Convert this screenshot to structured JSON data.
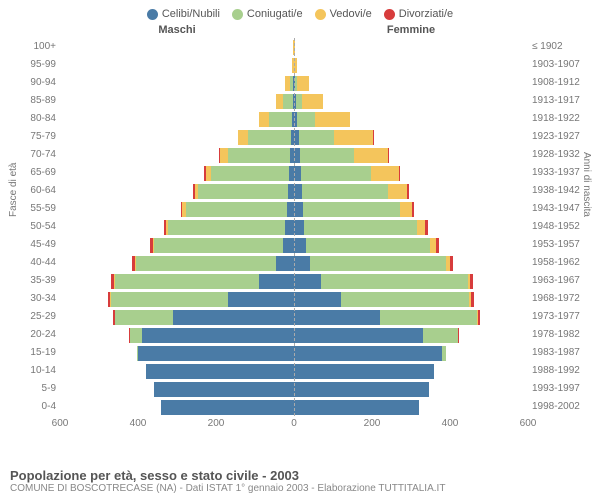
{
  "legend": [
    {
      "label": "Celibi/Nubili",
      "color": "#4a7ba6"
    },
    {
      "label": "Coniugati/e",
      "color": "#a8cf8e"
    },
    {
      "label": "Vedovi/e",
      "color": "#f4c55c"
    },
    {
      "label": "Divorziati/e",
      "color": "#d73c3c"
    }
  ],
  "header_male": "Maschi",
  "header_female": "Femmine",
  "axis_left_label": "Fasce di età",
  "axis_right_label": "Anni di nascita",
  "title": "Popolazione per età, sesso e stato civile - 2003",
  "subtitle": "COMUNE DI BOSCOTRECASE (NA) - Dati ISTAT 1° gennaio 2003 - Elaborazione TUTTITALIA.IT",
  "x_domain": 600,
  "x_ticks": [
    600,
    400,
    200,
    0,
    200,
    400,
    600
  ],
  "colors": {
    "single": "#4a7ba6",
    "married": "#a8cf8e",
    "widowed": "#f4c55c",
    "divorced": "#d73c3c",
    "grid": "#eeeeee",
    "centerline": "#aaaaaa",
    "text": "#777777",
    "bg": "#ffffff"
  },
  "rows": [
    {
      "age": "100+",
      "birth": "≤ 1902",
      "m": {
        "s": 0,
        "c": 0,
        "w": 2,
        "d": 0
      },
      "f": {
        "s": 0,
        "c": 0,
        "w": 3,
        "d": 0
      }
    },
    {
      "age": "95-99",
      "birth": "1903-1907",
      "m": {
        "s": 0,
        "c": 0,
        "w": 4,
        "d": 0
      },
      "f": {
        "s": 0,
        "c": 0,
        "w": 8,
        "d": 0
      }
    },
    {
      "age": "90-94",
      "birth": "1908-1912",
      "m": {
        "s": 2,
        "c": 8,
        "w": 12,
        "d": 0
      },
      "f": {
        "s": 3,
        "c": 5,
        "w": 30,
        "d": 0
      }
    },
    {
      "age": "85-89",
      "birth": "1913-1917",
      "m": {
        "s": 3,
        "c": 25,
        "w": 18,
        "d": 0
      },
      "f": {
        "s": 5,
        "c": 15,
        "w": 55,
        "d": 0
      }
    },
    {
      "age": "80-84",
      "birth": "1918-1922",
      "m": {
        "s": 5,
        "c": 60,
        "w": 25,
        "d": 0
      },
      "f": {
        "s": 8,
        "c": 45,
        "w": 90,
        "d": 0
      }
    },
    {
      "age": "75-79",
      "birth": "1923-1927",
      "m": {
        "s": 8,
        "c": 110,
        "w": 25,
        "d": 2
      },
      "f": {
        "s": 12,
        "c": 90,
        "w": 100,
        "d": 2
      }
    },
    {
      "age": "70-74",
      "birth": "1928-1932",
      "m": {
        "s": 10,
        "c": 160,
        "w": 20,
        "d": 3
      },
      "f": {
        "s": 15,
        "c": 140,
        "w": 85,
        "d": 3
      }
    },
    {
      "age": "65-69",
      "birth": "1933-1937",
      "m": {
        "s": 12,
        "c": 200,
        "w": 15,
        "d": 3
      },
      "f": {
        "s": 18,
        "c": 180,
        "w": 70,
        "d": 4
      }
    },
    {
      "age": "60-64",
      "birth": "1938-1942",
      "m": {
        "s": 15,
        "c": 230,
        "w": 10,
        "d": 4
      },
      "f": {
        "s": 20,
        "c": 220,
        "w": 50,
        "d": 5
      }
    },
    {
      "age": "55-59",
      "birth": "1943-1947",
      "m": {
        "s": 18,
        "c": 260,
        "w": 8,
        "d": 5
      },
      "f": {
        "s": 22,
        "c": 250,
        "w": 30,
        "d": 6
      }
    },
    {
      "age": "50-54",
      "birth": "1948-1952",
      "m": {
        "s": 22,
        "c": 300,
        "w": 6,
        "d": 6
      },
      "f": {
        "s": 25,
        "c": 290,
        "w": 22,
        "d": 7
      }
    },
    {
      "age": "45-49",
      "birth": "1953-1957",
      "m": {
        "s": 28,
        "c": 330,
        "w": 4,
        "d": 7
      },
      "f": {
        "s": 30,
        "c": 320,
        "w": 15,
        "d": 8
      }
    },
    {
      "age": "40-44",
      "birth": "1958-1962",
      "m": {
        "s": 45,
        "c": 360,
        "w": 3,
        "d": 8
      },
      "f": {
        "s": 40,
        "c": 350,
        "w": 10,
        "d": 9
      }
    },
    {
      "age": "35-39",
      "birth": "1963-1967",
      "m": {
        "s": 90,
        "c": 370,
        "w": 2,
        "d": 8
      },
      "f": {
        "s": 70,
        "c": 375,
        "w": 6,
        "d": 9
      }
    },
    {
      "age": "30-34",
      "birth": "1968-1972",
      "m": {
        "s": 170,
        "c": 300,
        "w": 1,
        "d": 7
      },
      "f": {
        "s": 120,
        "c": 330,
        "w": 4,
        "d": 8
      }
    },
    {
      "age": "25-29",
      "birth": "1973-1977",
      "m": {
        "s": 310,
        "c": 150,
        "w": 0,
        "d": 5
      },
      "f": {
        "s": 220,
        "c": 250,
        "w": 2,
        "d": 6
      }
    },
    {
      "age": "20-24",
      "birth": "1978-1982",
      "m": {
        "s": 390,
        "c": 30,
        "w": 0,
        "d": 2
      },
      "f": {
        "s": 330,
        "c": 90,
        "w": 0,
        "d": 3
      }
    },
    {
      "age": "15-19",
      "birth": "1983-1987",
      "m": {
        "s": 400,
        "c": 2,
        "w": 0,
        "d": 0
      },
      "f": {
        "s": 380,
        "c": 10,
        "w": 0,
        "d": 0
      }
    },
    {
      "age": "10-14",
      "birth": "1988-1992",
      "m": {
        "s": 380,
        "c": 0,
        "w": 0,
        "d": 0
      },
      "f": {
        "s": 360,
        "c": 0,
        "w": 0,
        "d": 0
      }
    },
    {
      "age": "5-9",
      "birth": "1993-1997",
      "m": {
        "s": 360,
        "c": 0,
        "w": 0,
        "d": 0
      },
      "f": {
        "s": 345,
        "c": 0,
        "w": 0,
        "d": 0
      }
    },
    {
      "age": "0-4",
      "birth": "1998-2002",
      "m": {
        "s": 340,
        "c": 0,
        "w": 0,
        "d": 0
      },
      "f": {
        "s": 320,
        "c": 0,
        "w": 0,
        "d": 0
      }
    }
  ]
}
